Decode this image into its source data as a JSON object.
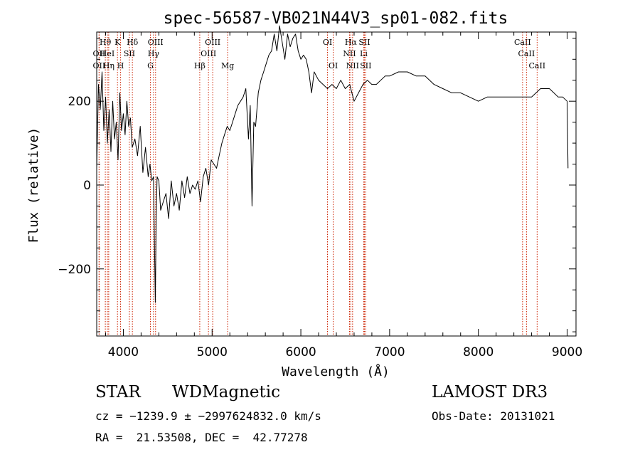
{
  "chart_data": {
    "type": "line",
    "title": "spec-56587-VB021N44V3_sp01-082.fits",
    "xlabel": "Wavelength (Å)",
    "ylabel": "Flux (relative)",
    "xlim": [
      3700,
      9100
    ],
    "ylim": [
      -360,
      365
    ],
    "x_ticks": [
      4000,
      5000,
      6000,
      7000,
      8000,
      9000
    ],
    "x_tick_labels": [
      "4000",
      "5000",
      "6000",
      "7000",
      "8000",
      "9000"
    ],
    "y_ticks": [
      -200,
      0,
      200
    ],
    "y_tick_labels": [
      "−200",
      "0",
      "200"
    ],
    "line_color": "#000000",
    "marker_color": "#cc2200",
    "series": [
      {
        "x": [
          3700,
          3720,
          3740,
          3760,
          3780,
          3800,
          3820,
          3840,
          3860,
          3880,
          3900,
          3920,
          3940,
          3960,
          3980,
          4000,
          4020,
          4040,
          4060,
          4080,
          4100,
          4130,
          4160,
          4190,
          4220,
          4250,
          4280,
          4300,
          4320,
          4340,
          4360,
          4370,
          4380,
          4400,
          4420,
          4450,
          4480,
          4510,
          4540,
          4570,
          4600,
          4630,
          4660,
          4690,
          4720,
          4750,
          4780,
          4810,
          4840,
          4870,
          4900,
          4930,
          4960,
          4990,
          5020,
          5050,
          5080,
          5110,
          5140,
          5170,
          5200,
          5230,
          5260,
          5290,
          5320,
          5350,
          5380,
          5410,
          5430,
          5450,
          5470,
          5490,
          5520,
          5550,
          5580,
          5610,
          5640,
          5670,
          5700,
          5730,
          5760,
          5790,
          5820,
          5850,
          5880,
          5910,
          5940,
          5970,
          6000,
          6030,
          6060,
          6090,
          6120,
          6150,
          6200,
          6250,
          6300,
          6350,
          6400,
          6450,
          6500,
          6550,
          6600,
          6650,
          6700,
          6750,
          6800,
          6850,
          6900,
          6950,
          7000,
          7100,
          7200,
          7300,
          7400,
          7500,
          7600,
          7700,
          7800,
          7900,
          8000,
          8100,
          8200,
          8300,
          8400,
          8500,
          8600,
          8700,
          8800,
          8900,
          8950,
          9000,
          9010
        ],
        "y": [
          40,
          240,
          180,
          270,
          130,
          210,
          100,
          180,
          80,
          200,
          110,
          150,
          60,
          220,
          130,
          170,
          120,
          200,
          140,
          160,
          90,
          110,
          70,
          140,
          30,
          90,
          20,
          50,
          10,
          20,
          -280,
          -80,
          20,
          10,
          -60,
          -40,
          -20,
          -80,
          10,
          -50,
          -20,
          -60,
          10,
          -30,
          20,
          -20,
          0,
          -10,
          10,
          -40,
          20,
          40,
          0,
          60,
          50,
          40,
          70,
          100,
          120,
          140,
          130,
          150,
          170,
          190,
          200,
          210,
          230,
          110,
          190,
          -50,
          150,
          140,
          220,
          250,
          270,
          290,
          310,
          320,
          360,
          320,
          380,
          340,
          300,
          360,
          330,
          350,
          360,
          320,
          300,
          310,
          300,
          270,
          220,
          270,
          250,
          240,
          230,
          240,
          230,
          250,
          230,
          240,
          200,
          220,
          240,
          250,
          240,
          240,
          250,
          260,
          260,
          270,
          270,
          260,
          260,
          240,
          230,
          220,
          220,
          210,
          200,
          210,
          210,
          210,
          210,
          210,
          210,
          230,
          230,
          210,
          210,
          200,
          40
        ]
      }
    ],
    "line_markers": [
      {
        "label": "Hθ",
        "x": 3797,
        "row": 1
      },
      {
        "label": "OII",
        "x": 3727,
        "row": 2
      },
      {
        "label": "OII",
        "x": 3727,
        "row": 3
      },
      {
        "label": "HeI",
        "x": 3820,
        "row": 2
      },
      {
        "label": "Hη",
        "x": 3835,
        "row": 3
      },
      {
        "label": "K",
        "x": 3934,
        "row": 1
      },
      {
        "label": "H",
        "x": 3969,
        "row": 3
      },
      {
        "label": "SII",
        "x": 4068,
        "row": 2
      },
      {
        "label": "Hδ",
        "x": 4102,
        "row": 1
      },
      {
        "label": "OIII",
        "x": 4363,
        "row": 1
      },
      {
        "label": "Hγ",
        "x": 4340,
        "row": 2
      },
      {
        "label": "G",
        "x": 4305,
        "row": 3
      },
      {
        "label": "Hβ",
        "x": 4861,
        "row": 3
      },
      {
        "label": "OIII",
        "x": 4959,
        "row": 2
      },
      {
        "label": "OIII",
        "x": 5007,
        "row": 1
      },
      {
        "label": "Mg",
        "x": 5175,
        "row": 3
      },
      {
        "label": "OI",
        "x": 6300,
        "row": 1
      },
      {
        "label": "OI",
        "x": 6364,
        "row": 3
      },
      {
        "label": "Hα",
        "x": 6563,
        "row": 1
      },
      {
        "label": "NII",
        "x": 6548,
        "row": 2
      },
      {
        "label": "NII",
        "x": 6583,
        "row": 3
      },
      {
        "label": "SII",
        "x": 6716,
        "row": 1
      },
      {
        "label": "Li",
        "x": 6708,
        "row": 2
      },
      {
        "label": "SII",
        "x": 6731,
        "row": 3
      },
      {
        "label": "CaII",
        "x": 8498,
        "row": 1
      },
      {
        "label": "CaII",
        "x": 8542,
        "row": 2
      },
      {
        "label": "CaII",
        "x": 8662,
        "row": 3
      }
    ]
  },
  "info": {
    "object_type": "STAR",
    "subclass": "WDMagnetic",
    "survey": "LAMOST DR3",
    "cz_line": "cz = −1239.9 ± −2997624832.0 km/s",
    "obs_date_line": "Obs-Date: 20131021",
    "radec_line": "RA =  21.53508, DEC =  42.77278"
  }
}
